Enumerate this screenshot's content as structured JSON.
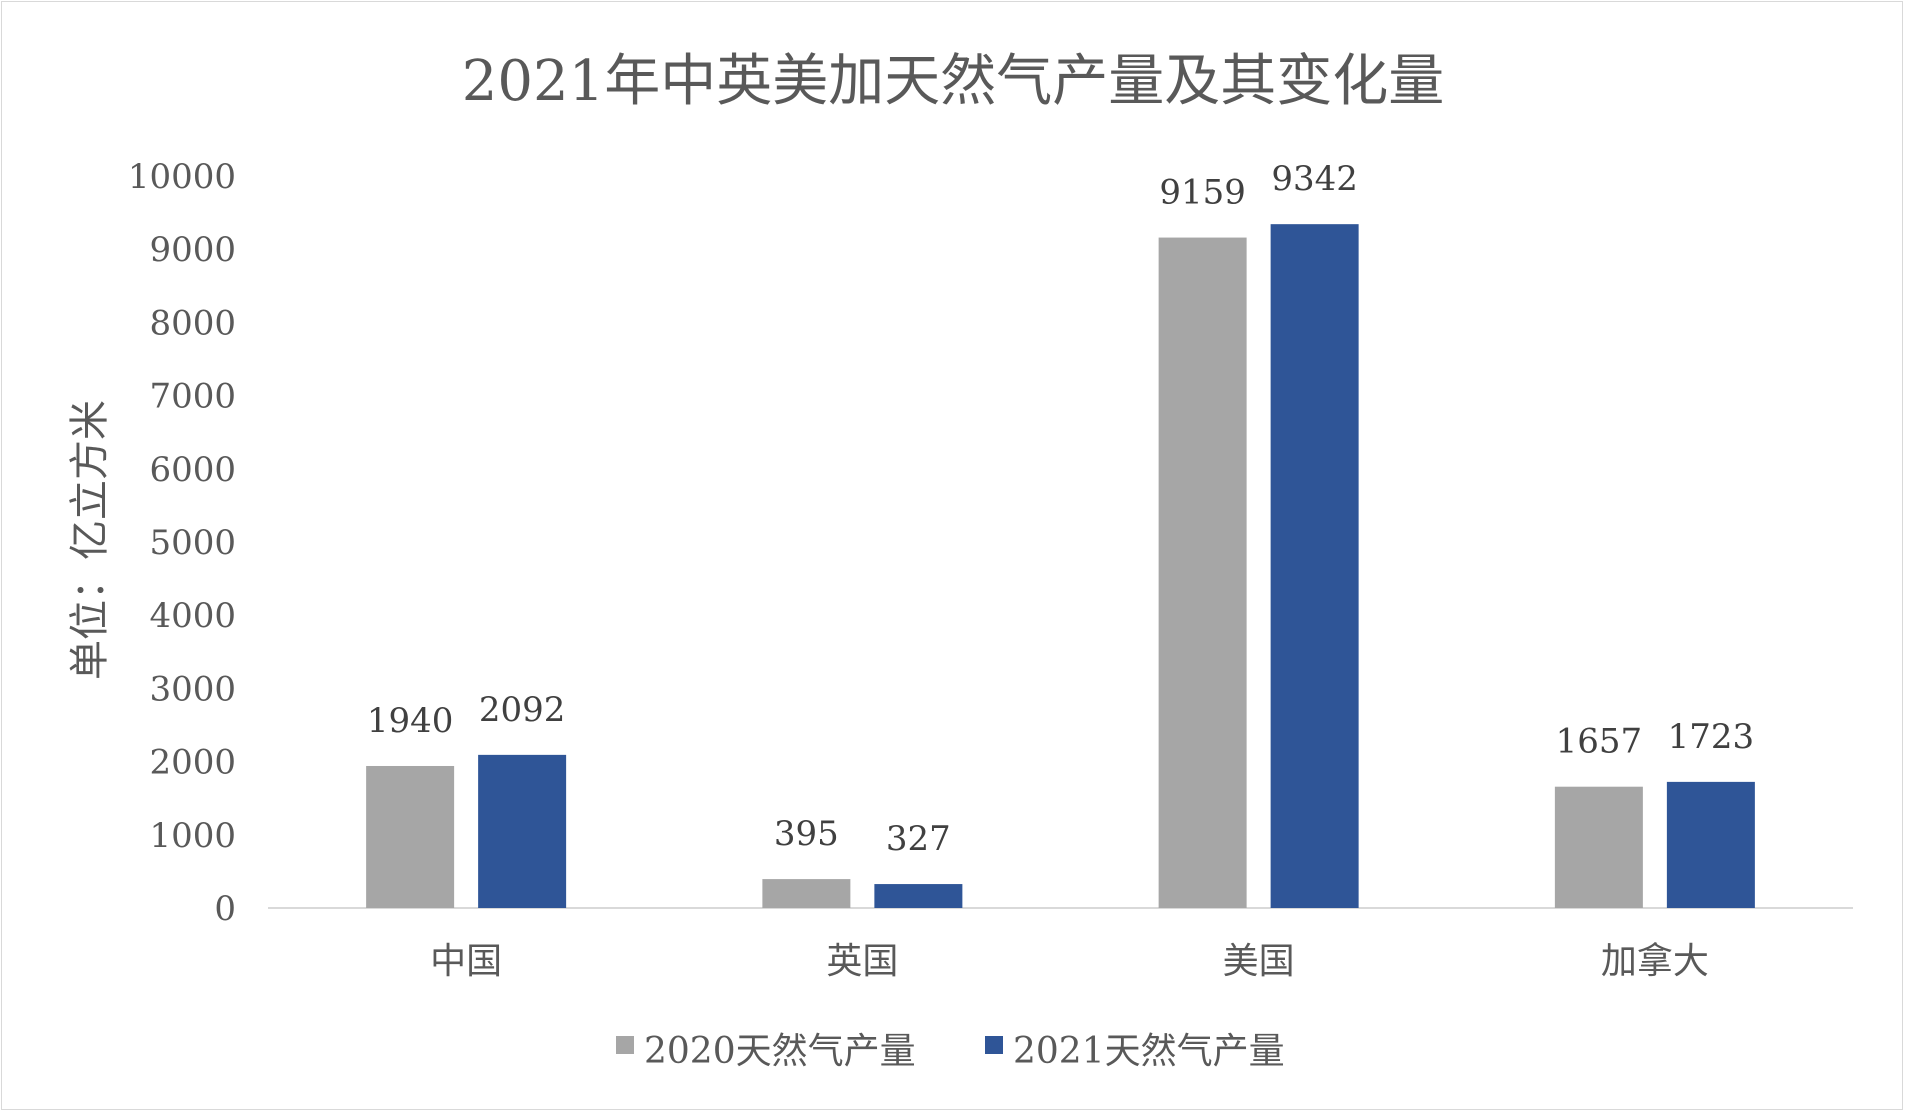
{
  "chart_data": {
    "type": "bar",
    "title": "2021年中英美加天然气产量及其变化量",
    "xlabel": "",
    "ylabel": "单位：亿立方米",
    "categories": [
      "中国",
      "英国",
      "美国",
      "加拿大"
    ],
    "series": [
      {
        "name": "2020天然气产量",
        "values": [
          1940,
          395,
          9159,
          1657
        ],
        "color": "#a6a6a6"
      },
      {
        "name": "2021天然气产量",
        "values": [
          2092,
          327,
          9342,
          1723
        ],
        "color": "#2f5597"
      }
    ],
    "ylim": [
      0,
      10000
    ],
    "yticks": [
      "0",
      "1000",
      "2000",
      "3000",
      "4000",
      "5000",
      "6000",
      "7000",
      "8000",
      "9000",
      "10000"
    ],
    "grid": false,
    "legend_position": "bottom",
    "axis_color": "#d9d9d9"
  }
}
